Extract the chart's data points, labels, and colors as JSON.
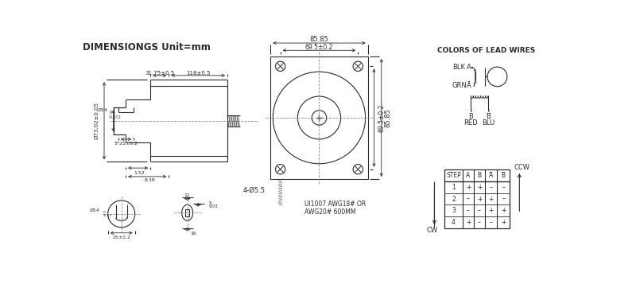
{
  "title": "DIMENSIONGS Unit=mm",
  "bg_color": "#ffffff",
  "line_color": "#2a2a2a",
  "font_size_title": 8.5,
  "font_size_label": 5.5,
  "font_size_small": 4.5,
  "font_size_table": 5.5,
  "colors_title": "COLORS OF LEAD WIRES",
  "table_headers": [
    "STEP",
    "A",
    "B",
    "A̅",
    "B̅"
  ],
  "table_data": [
    [
      "1",
      "+",
      "+",
      "–",
      "–"
    ],
    [
      "2",
      "–",
      "+",
      "+",
      "–"
    ],
    [
      "3",
      "–",
      "–",
      "+",
      "+"
    ],
    [
      "4",
      "+",
      "–",
      "–",
      "+"
    ]
  ],
  "cw_label": "CW",
  "ccw_label": "CCW"
}
